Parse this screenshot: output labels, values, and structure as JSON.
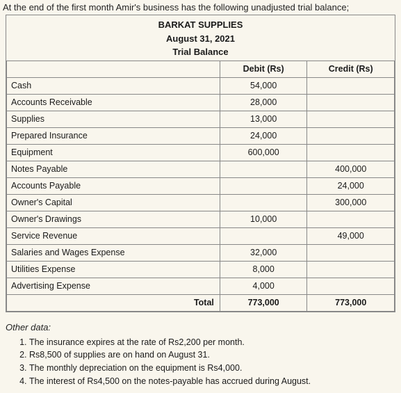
{
  "intro_text": "At the end of the first month Amir's business has the following unadjusted trial balance;",
  "header": {
    "company": "BARKAT SUPPLIES",
    "date": "August 31, 2021",
    "title": "Trial Balance"
  },
  "table": {
    "col_debit": "Debit (Rs)",
    "col_credit": "Credit (Rs)",
    "rows": [
      {
        "account": "Cash",
        "debit": "54,000",
        "credit": ""
      },
      {
        "account": "Accounts Receivable",
        "debit": "28,000",
        "credit": ""
      },
      {
        "account": "Supplies",
        "debit": "13,000",
        "credit": ""
      },
      {
        "account": "Prepared Insurance",
        "debit": "24,000",
        "credit": ""
      },
      {
        "account": "Equipment",
        "debit": "600,000",
        "credit": ""
      },
      {
        "account": "Notes Payable",
        "debit": "",
        "credit": "400,000"
      },
      {
        "account": "Accounts Payable",
        "debit": "",
        "credit": "24,000"
      },
      {
        "account": "Owner's Capital",
        "debit": "",
        "credit": "300,000"
      },
      {
        "account": "Owner's Drawings",
        "debit": "10,000",
        "credit": ""
      },
      {
        "account": "Service Revenue",
        "debit": "",
        "credit": "49,000"
      },
      {
        "account": "Salaries and Wages Expense",
        "debit": "32,000",
        "credit": ""
      },
      {
        "account": "Utilities Expense",
        "debit": "8,000",
        "credit": ""
      },
      {
        "account": "Advertising Expense",
        "debit": "4,000",
        "credit": ""
      }
    ],
    "total_label": "Total",
    "total_debit": "773,000",
    "total_credit": "773,000"
  },
  "other_label": "Other data:",
  "notes": [
    "The insurance expires at the rate of Rs2,200 per month.",
    "Rs8,500 of supplies are on hand on August 31.",
    "The monthly depreciation on the equipment is Rs4,000.",
    "The interest of Rs4,500 on the notes-payable has accrued during August."
  ]
}
